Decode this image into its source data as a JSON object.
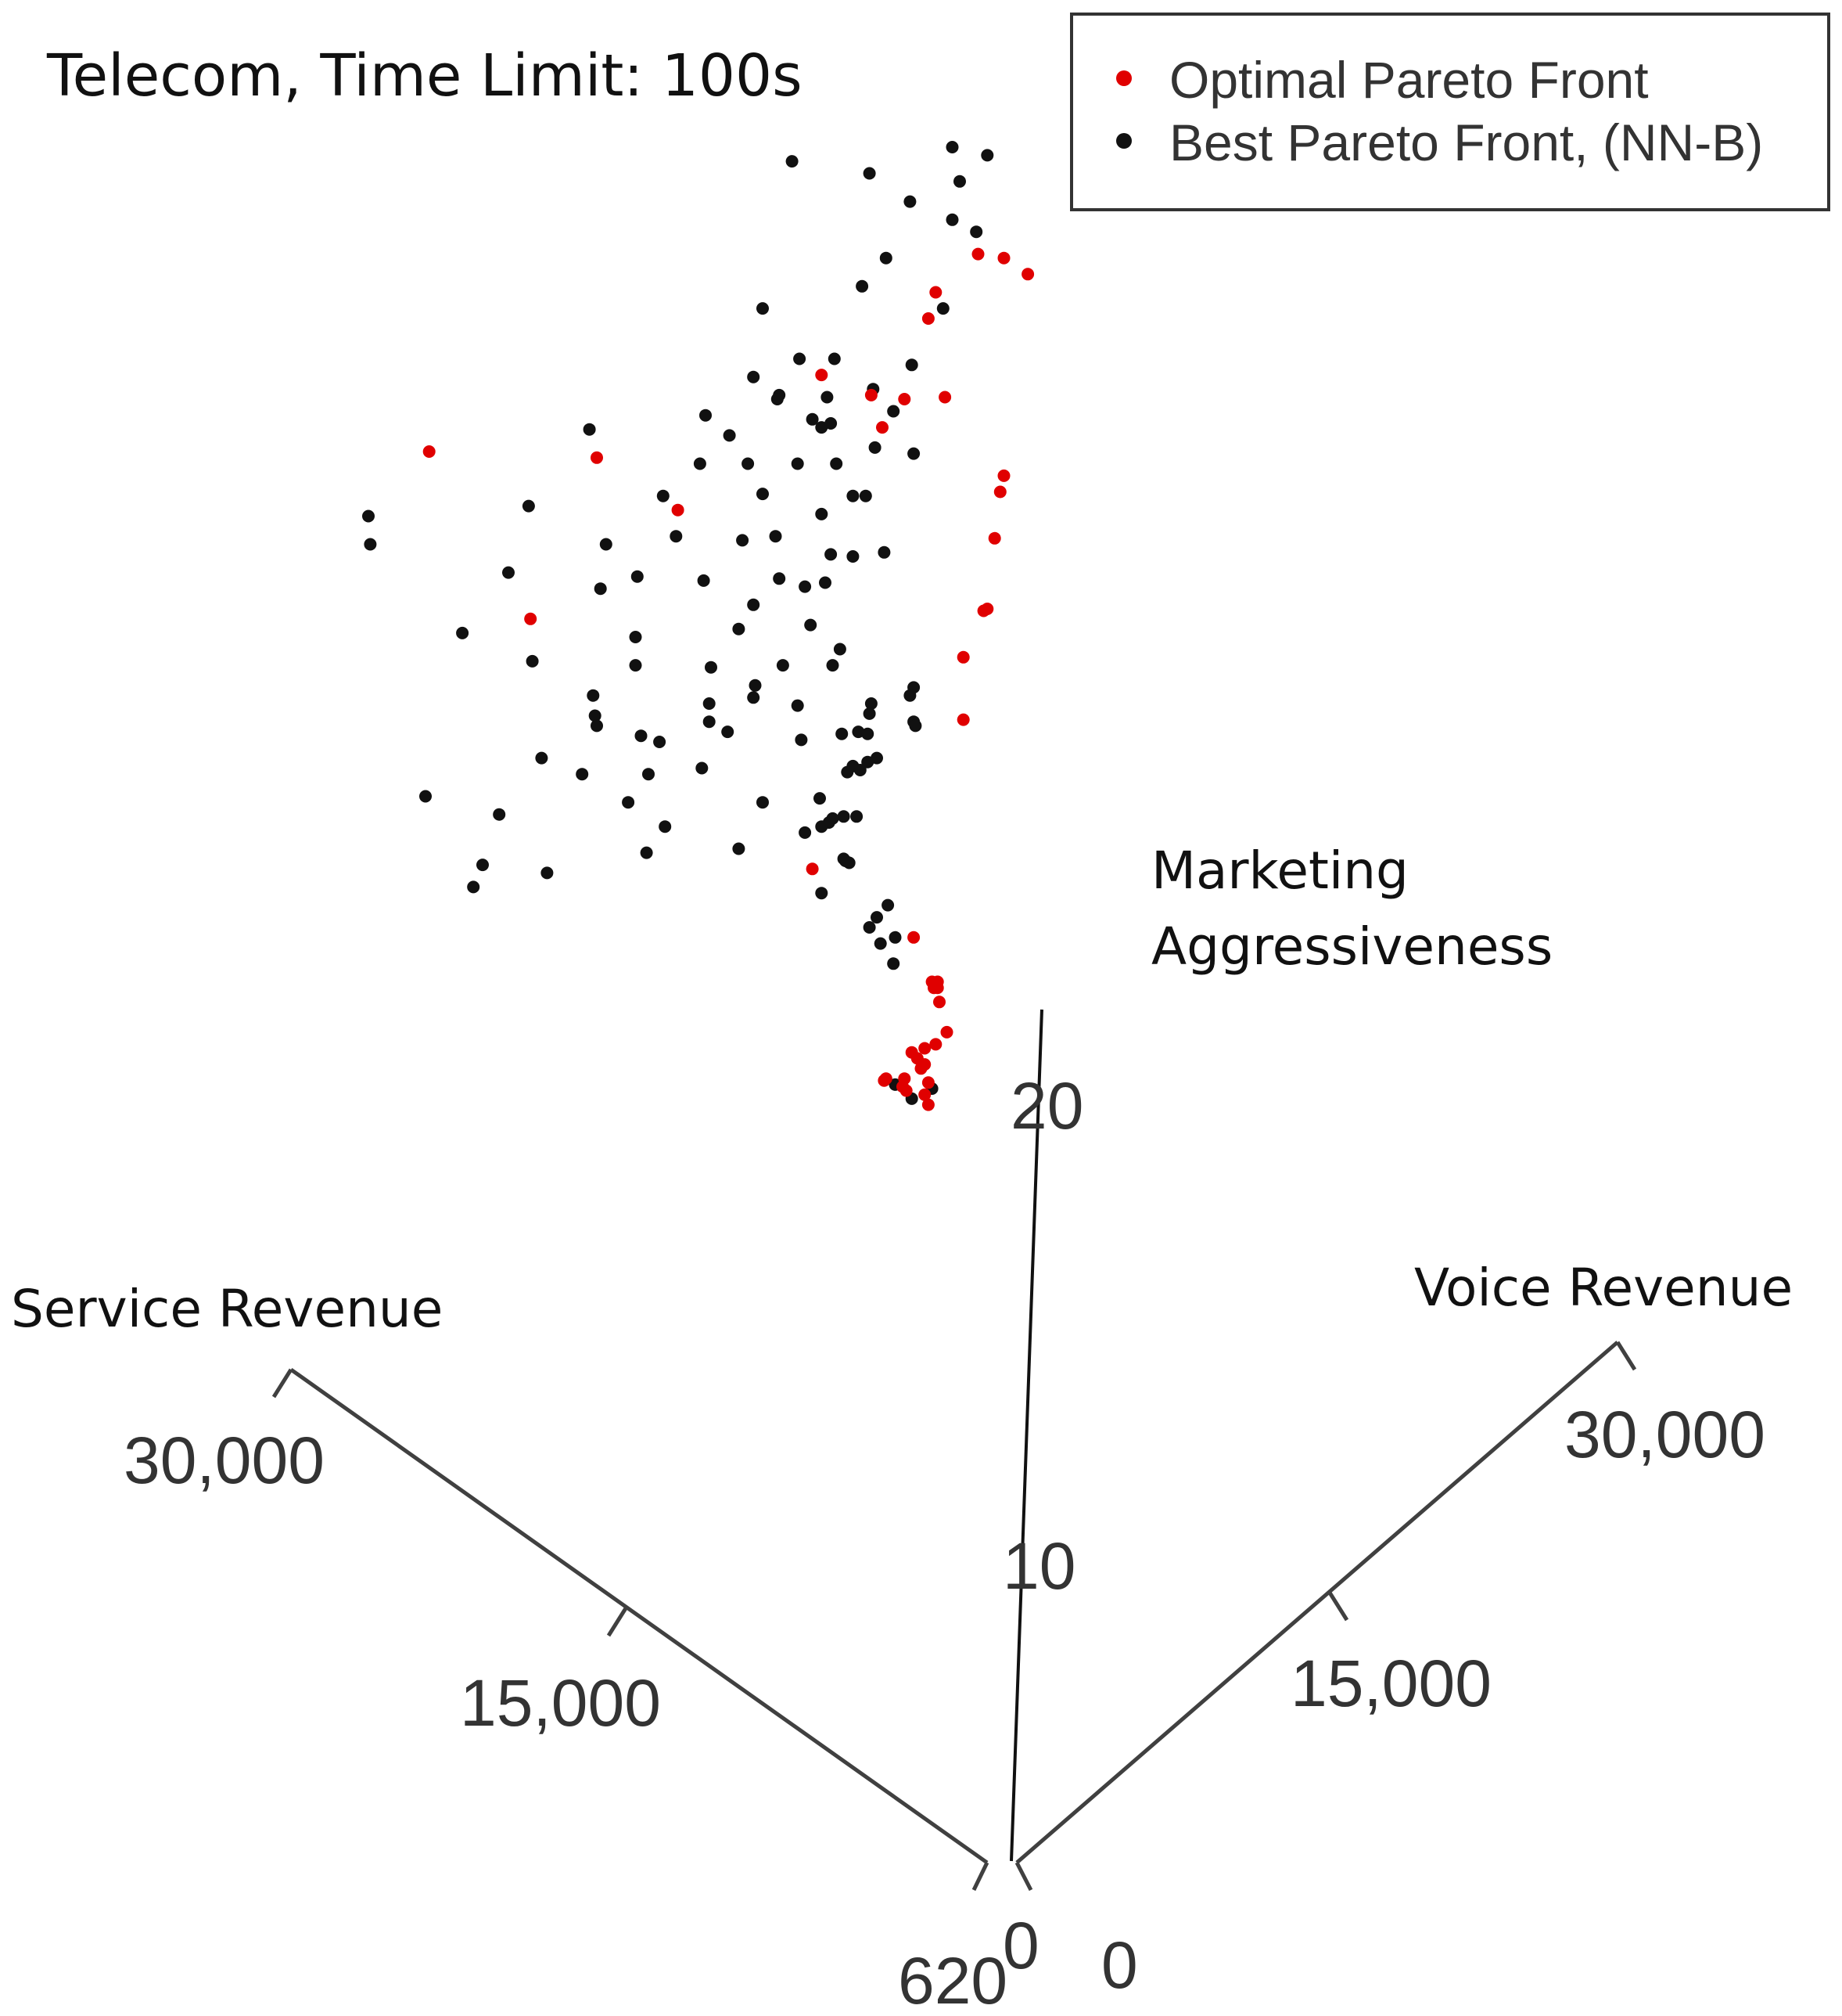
{
  "title": "Telecom, Time Limit: 100s",
  "chart_data": {
    "type": "scatter",
    "projection": "3D",
    "axes": {
      "x": {
        "label": "Service Revenue",
        "ticks": [
          "30,000",
          "15,000",
          "620"
        ]
      },
      "y": {
        "label": "Voice Revenue",
        "ticks": [
          "30,000",
          "15,000",
          "0"
        ]
      },
      "z": {
        "label_lines": [
          "Marketing",
          "Aggressiveness"
        ],
        "ticks": [
          "20",
          "10",
          "0"
        ]
      }
    },
    "legend": {
      "position": "top-right",
      "entries": [
        {
          "label": "Optimal Pareto Front",
          "color": "#e00000"
        },
        {
          "label": "Best Pareto Front, (NN-B)",
          "color": "#111111"
        }
      ]
    },
    "colors": {
      "optimal": "#e00000",
      "best": "#111111"
    },
    "series": [
      {
        "name": "Optimal Pareto Front",
        "points": [
          [
            0.504,
            0.158
          ],
          [
            0.508,
            0.145
          ],
          [
            0.531,
            0.126
          ],
          [
            0.545,
            0.128
          ],
          [
            0.558,
            0.136
          ],
          [
            0.446,
            0.186
          ],
          [
            0.473,
            0.196
          ],
          [
            0.479,
            0.212
          ],
          [
            0.491,
            0.198
          ],
          [
            0.513,
            0.197
          ],
          [
            0.233,
            0.224
          ],
          [
            0.324,
            0.227
          ],
          [
            0.368,
            0.253
          ],
          [
            0.545,
            0.236
          ],
          [
            0.543,
            0.244
          ],
          [
            0.54,
            0.267
          ],
          [
            0.536,
            0.302
          ],
          [
            0.534,
            0.303
          ],
          [
            0.288,
            0.307
          ],
          [
            0.523,
            0.326
          ],
          [
            0.523,
            0.357
          ],
          [
            0.441,
            0.431
          ],
          [
            0.496,
            0.465
          ],
          [
            0.509,
            0.49
          ],
          [
            0.506,
            0.487
          ],
          [
            0.51,
            0.497
          ],
          [
            0.508,
            0.518
          ],
          [
            0.514,
            0.512
          ],
          [
            0.495,
            0.522
          ],
          [
            0.498,
            0.525
          ],
          [
            0.502,
            0.543
          ],
          [
            0.48,
            0.536
          ],
          [
            0.49,
            0.539
          ],
          [
            0.504,
            0.537
          ],
          [
            0.5,
            0.53
          ],
          [
            0.504,
            0.548
          ],
          [
            0.491,
            0.535
          ],
          [
            0.481,
            0.535
          ],
          [
            0.502,
            0.52
          ],
          [
            0.507,
            0.49
          ],
          [
            0.492,
            0.541
          ],
          [
            0.502,
            0.528
          ],
          [
            0.509,
            0.487
          ]
        ]
      },
      {
        "name": "Best Pareto Front, (NN-B)",
        "points": [
          [
            0.43,
            0.08
          ],
          [
            0.472,
            0.086
          ],
          [
            0.517,
            0.073
          ],
          [
            0.536,
            0.077
          ],
          [
            0.521,
            0.09
          ],
          [
            0.494,
            0.1
          ],
          [
            0.517,
            0.109
          ],
          [
            0.53,
            0.115
          ],
          [
            0.481,
            0.128
          ],
          [
            0.468,
            0.142
          ],
          [
            0.414,
            0.153
          ],
          [
            0.512,
            0.153
          ],
          [
            0.434,
            0.178
          ],
          [
            0.453,
            0.178
          ],
          [
            0.495,
            0.181
          ],
          [
            0.409,
            0.187
          ],
          [
            0.423,
            0.196
          ],
          [
            0.422,
            0.198
          ],
          [
            0.449,
            0.197
          ],
          [
            0.474,
            0.193
          ],
          [
            0.485,
            0.204
          ],
          [
            0.441,
            0.208
          ],
          [
            0.446,
            0.212
          ],
          [
            0.451,
            0.21
          ],
          [
            0.383,
            0.206
          ],
          [
            0.32,
            0.213
          ],
          [
            0.396,
            0.216
          ],
          [
            0.475,
            0.222
          ],
          [
            0.496,
            0.225
          ],
          [
            0.38,
            0.23
          ],
          [
            0.406,
            0.23
          ],
          [
            0.433,
            0.23
          ],
          [
            0.454,
            0.23
          ],
          [
            0.36,
            0.246
          ],
          [
            0.414,
            0.245
          ],
          [
            0.463,
            0.246
          ],
          [
            0.47,
            0.246
          ],
          [
            0.2,
            0.256
          ],
          [
            0.287,
            0.251
          ],
          [
            0.446,
            0.255
          ],
          [
            0.201,
            0.27
          ],
          [
            0.329,
            0.27
          ],
          [
            0.367,
            0.266
          ],
          [
            0.403,
            0.268
          ],
          [
            0.421,
            0.266
          ],
          [
            0.451,
            0.275
          ],
          [
            0.463,
            0.276
          ],
          [
            0.48,
            0.274
          ],
          [
            0.276,
            0.284
          ],
          [
            0.346,
            0.286
          ],
          [
            0.382,
            0.288
          ],
          [
            0.423,
            0.287
          ],
          [
            0.437,
            0.291
          ],
          [
            0.326,
            0.292
          ],
          [
            0.448,
            0.289
          ],
          [
            0.409,
            0.3
          ],
          [
            0.251,
            0.314
          ],
          [
            0.289,
            0.328
          ],
          [
            0.345,
            0.316
          ],
          [
            0.401,
            0.312
          ],
          [
            0.44,
            0.31
          ],
          [
            0.456,
            0.322
          ],
          [
            0.345,
            0.33
          ],
          [
            0.386,
            0.331
          ],
          [
            0.425,
            0.33
          ],
          [
            0.41,
            0.34
          ],
          [
            0.452,
            0.33
          ],
          [
            0.496,
            0.341
          ],
          [
            0.409,
            0.346
          ],
          [
            0.322,
            0.345
          ],
          [
            0.385,
            0.349
          ],
          [
            0.433,
            0.35
          ],
          [
            0.494,
            0.345
          ],
          [
            0.473,
            0.349
          ],
          [
            0.323,
            0.355
          ],
          [
            0.472,
            0.354
          ],
          [
            0.496,
            0.358
          ],
          [
            0.385,
            0.358
          ],
          [
            0.324,
            0.36
          ],
          [
            0.348,
            0.365
          ],
          [
            0.497,
            0.36
          ],
          [
            0.395,
            0.363
          ],
          [
            0.466,
            0.363
          ],
          [
            0.471,
            0.364
          ],
          [
            0.457,
            0.364
          ],
          [
            0.358,
            0.368
          ],
          [
            0.435,
            0.367
          ],
          [
            0.294,
            0.376
          ],
          [
            0.476,
            0.376
          ],
          [
            0.471,
            0.378
          ],
          [
            0.463,
            0.38
          ],
          [
            0.381,
            0.381
          ],
          [
            0.316,
            0.384
          ],
          [
            0.352,
            0.384
          ],
          [
            0.467,
            0.382
          ],
          [
            0.46,
            0.383
          ],
          [
            0.231,
            0.395
          ],
          [
            0.341,
            0.398
          ],
          [
            0.414,
            0.398
          ],
          [
            0.445,
            0.396
          ],
          [
            0.271,
            0.404
          ],
          [
            0.458,
            0.405
          ],
          [
            0.465,
            0.405
          ],
          [
            0.452,
            0.406
          ],
          [
            0.361,
            0.41
          ],
          [
            0.45,
            0.408
          ],
          [
            0.437,
            0.413
          ],
          [
            0.446,
            0.41
          ],
          [
            0.401,
            0.421
          ],
          [
            0.351,
            0.423
          ],
          [
            0.458,
            0.426
          ],
          [
            0.459,
            0.427
          ],
          [
            0.461,
            0.428
          ],
          [
            0.262,
            0.429
          ],
          [
            0.297,
            0.433
          ],
          [
            0.257,
            0.44
          ],
          [
            0.446,
            0.443
          ],
          [
            0.482,
            0.449
          ],
          [
            0.476,
            0.455
          ],
          [
            0.472,
            0.46
          ],
          [
            0.486,
            0.465
          ],
          [
            0.478,
            0.468
          ],
          [
            0.485,
            0.478
          ],
          [
            0.506,
            0.54
          ],
          [
            0.486,
            0.538
          ],
          [
            0.495,
            0.545
          ]
        ]
      }
    ]
  }
}
